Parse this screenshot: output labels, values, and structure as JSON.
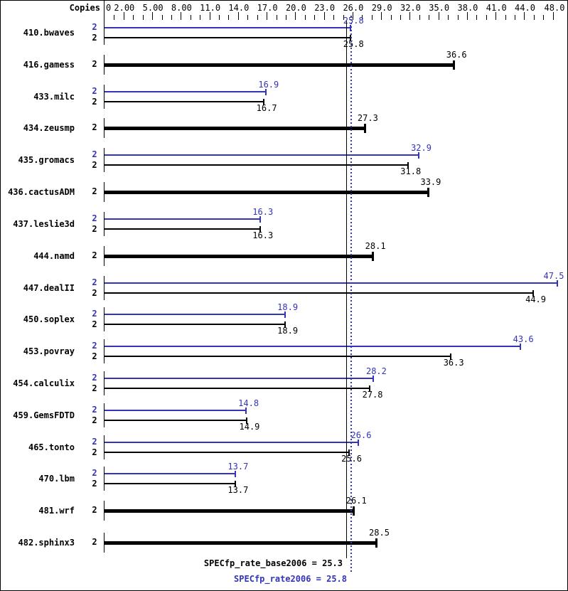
{
  "header": {
    "copies_label": "Copies"
  },
  "footer": {
    "base_label": "SPECfp_rate_base2006 = 25.3",
    "peak_label": "SPECfp_rate2006 = 25.8"
  },
  "colors": {
    "peak_blue": "#3333bb",
    "base_black": "#000000",
    "background": "#ffffff"
  },
  "chart_data": {
    "type": "bar",
    "orientation": "horizontal",
    "title": "",
    "xlabel": "",
    "ylabel": "Copies",
    "axis": {
      "min": 0,
      "max": 48,
      "tick_labels": [
        "0",
        "2.00",
        "5.00",
        "8.00",
        "11.0",
        "14.0",
        "17.0",
        "20.0",
        "23.0",
        "26.0",
        "29.0",
        "32.0",
        "35.0",
        "38.0",
        "41.0",
        "44.0",
        "48.0"
      ],
      "tick_values": [
        0,
        2,
        5,
        8,
        11,
        14,
        17,
        20,
        23,
        26,
        29,
        32,
        35,
        38,
        41,
        44,
        48
      ],
      "major_tick_values": [
        2,
        5,
        8,
        11,
        14,
        17,
        20,
        23,
        26,
        29,
        32,
        35,
        38,
        41,
        44,
        47
      ],
      "minor_tick_step": 1,
      "grid": false
    },
    "legend": {
      "peak_series": "SPECfp_rate2006 (blue, thin top bar)",
      "base_series": "SPECfp_rate_base2006 (black bar)"
    },
    "benchmarks": [
      {
        "name": "410.bwaves",
        "copies": 2,
        "peak": 25.8,
        "base": 25.8
      },
      {
        "name": "416.gamess",
        "copies": 2,
        "peak": null,
        "base": 36.6
      },
      {
        "name": "433.milc",
        "copies": 2,
        "peak": 16.9,
        "base": 16.7
      },
      {
        "name": "434.zeusmp",
        "copies": 2,
        "peak": null,
        "base": 27.3
      },
      {
        "name": "435.gromacs",
        "copies": 2,
        "peak": 32.9,
        "base": 31.8
      },
      {
        "name": "436.cactusADM",
        "copies": 2,
        "peak": null,
        "base": 33.9
      },
      {
        "name": "437.leslie3d",
        "copies": 2,
        "peak": 16.3,
        "base": 16.3
      },
      {
        "name": "444.namd",
        "copies": 2,
        "peak": null,
        "base": 28.1
      },
      {
        "name": "447.dealII",
        "copies": 2,
        "peak": 47.5,
        "base": 44.9
      },
      {
        "name": "450.soplex",
        "copies": 2,
        "peak": 18.9,
        "base": 18.9
      },
      {
        "name": "453.povray",
        "copies": 2,
        "peak": 43.6,
        "base": 36.3
      },
      {
        "name": "454.calculix",
        "copies": 2,
        "peak": 28.2,
        "base": 27.8
      },
      {
        "name": "459.GemsFDTD",
        "copies": 2,
        "peak": 14.8,
        "base": 14.9
      },
      {
        "name": "465.tonto",
        "copies": 2,
        "peak": 26.6,
        "base": 25.6
      },
      {
        "name": "470.lbm",
        "copies": 2,
        "peak": 13.7,
        "base": 13.7
      },
      {
        "name": "481.wrf",
        "copies": 2,
        "peak": null,
        "base": 26.1
      },
      {
        "name": "482.sphinx3",
        "copies": 2,
        "peak": null,
        "base": 28.5
      }
    ],
    "reference_lines": [
      {
        "label": "SPECfp_rate_base2006",
        "value": 25.3,
        "style": "solid",
        "color": "#000000"
      },
      {
        "label": "SPECfp_rate2006",
        "value": 25.8,
        "style": "dotted",
        "color": "#3333bb"
      }
    ],
    "summary": {
      "base": 25.3,
      "peak": 25.8
    }
  }
}
